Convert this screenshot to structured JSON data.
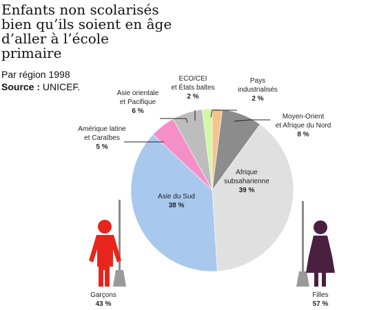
{
  "title": "Enfants non scolarisés\nbien qu’ils soient en âge\nd’aller à l’école\nprimaire",
  "subtitle": "Par région 1998",
  "source_label": "Source :",
  "source_value": "UNICEF.",
  "chart_data": {
    "type": "pie",
    "slices": [
      {
        "label_lines": [
          "Pays",
          "industrialisés"
        ],
        "value": 2,
        "pct": "2 %",
        "color": "#f5c48a"
      },
      {
        "label_lines": [
          "Moyen-Orient",
          "et Afrique du Nord"
        ],
        "value": 8,
        "pct": "8 %",
        "color": "#8c8c8c"
      },
      {
        "label_lines": [
          "Afrique",
          "subsaharienne"
        ],
        "value": 39,
        "pct": "39 %",
        "color": "#e0e0e0"
      },
      {
        "label_lines": [
          "Asie du Sud"
        ],
        "value": 38,
        "pct": "38 %",
        "color": "#a9c8ee"
      },
      {
        "label_lines": [
          "Amérique latine",
          "et Caraïbes"
        ],
        "value": 5,
        "pct": "5 %",
        "color": "#f48fc8"
      },
      {
        "label_lines": [
          "Asie orientale",
          "et Pacifique"
        ],
        "value": 6,
        "pct": "6 %",
        "color": "#bdbdbd"
      },
      {
        "label_lines": [
          "ECO/CEI",
          "et États baltes"
        ],
        "value": 2,
        "pct": "2 %",
        "color": "#d4f7a6"
      }
    ],
    "gender": [
      {
        "label": "Garçons",
        "pct": "43 %",
        "color": "#e8251c"
      },
      {
        "label": "Filles",
        "pct": "57 %",
        "color": "#4b1f3f"
      }
    ]
  }
}
